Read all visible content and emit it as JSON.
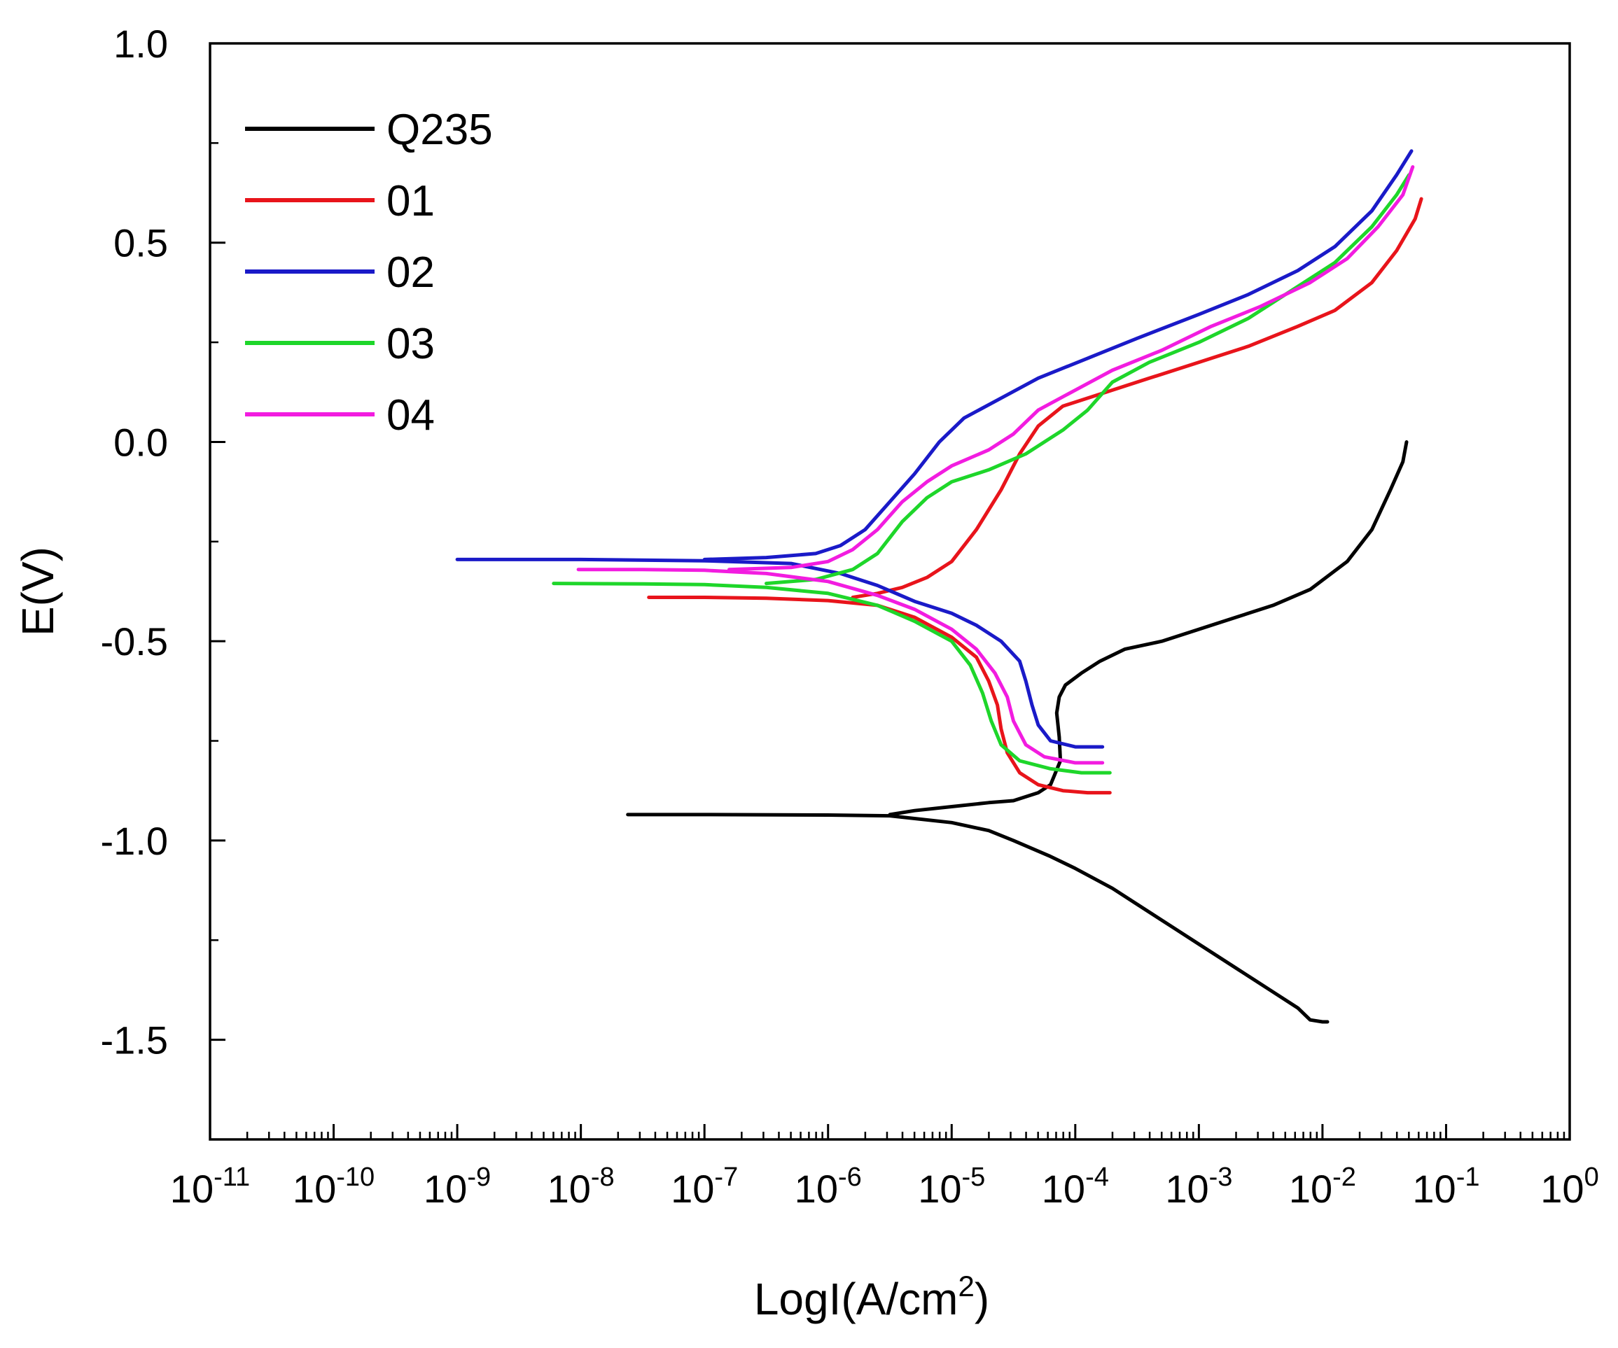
{
  "chart_data": {
    "type": "line",
    "title": "",
    "xlabel": {
      "base": "LogI(A/cm",
      "sup": "2",
      "close": ")"
    },
    "ylabel": "E(V)",
    "x_scale": "log10",
    "xlim_exp": [
      -11,
      0
    ],
    "ylim": [
      -1.75,
      1.0
    ],
    "x_ticks": [
      {
        "base": "10",
        "exp": "-11"
      },
      {
        "base": "10",
        "exp": "-10"
      },
      {
        "base": "10",
        "exp": "-9"
      },
      {
        "base": "10",
        "exp": "-8"
      },
      {
        "base": "10",
        "exp": "-7"
      },
      {
        "base": "10",
        "exp": "-6"
      },
      {
        "base": "10",
        "exp": "-5"
      },
      {
        "base": "10",
        "exp": "-4"
      },
      {
        "base": "10",
        "exp": "-3"
      },
      {
        "base": "10",
        "exp": "-2"
      },
      {
        "base": "10",
        "exp": "-1"
      },
      {
        "base": "10",
        "exp": "0"
      }
    ],
    "y_ticks": [
      {
        "value": 1.0,
        "label": "1.0"
      },
      {
        "value": 0.5,
        "label": "0.5"
      },
      {
        "value": 0.0,
        "label": "0.0"
      },
      {
        "value": -0.5,
        "label": "-0.5"
      },
      {
        "value": -1.0,
        "label": "-1.0"
      },
      {
        "value": -1.5,
        "label": "-1.5"
      }
    ],
    "legend_position": "top-left",
    "grid": false,
    "series": [
      {
        "name": "Q235",
        "color": "#000000",
        "cathodic": [
          [
            -7.62,
            -0.935
          ],
          [
            -7.0,
            -0.935
          ],
          [
            -6.0,
            -0.936
          ],
          [
            -5.5,
            -0.938
          ],
          [
            -5.0,
            -0.955
          ],
          [
            -4.7,
            -0.975
          ],
          [
            -4.5,
            -1.0
          ],
          [
            -4.2,
            -1.04
          ],
          [
            -4.0,
            -1.07
          ],
          [
            -3.7,
            -1.12
          ],
          [
            -3.5,
            -1.16
          ],
          [
            -3.2,
            -1.22
          ],
          [
            -3.0,
            -1.26
          ],
          [
            -2.7,
            -1.32
          ],
          [
            -2.4,
            -1.38
          ],
          [
            -2.2,
            -1.42
          ],
          [
            -2.1,
            -1.45
          ],
          [
            -2.0,
            -1.455
          ],
          [
            -1.96,
            -1.455
          ]
        ],
        "anodic": [
          [
            -5.5,
            -0.935
          ],
          [
            -5.3,
            -0.925
          ],
          [
            -5.0,
            -0.915
          ],
          [
            -4.7,
            -0.905
          ],
          [
            -4.5,
            -0.9
          ],
          [
            -4.3,
            -0.88
          ],
          [
            -4.2,
            -0.86
          ],
          [
            -4.12,
            -0.8
          ],
          [
            -4.13,
            -0.74
          ],
          [
            -4.15,
            -0.68
          ],
          [
            -4.13,
            -0.64
          ],
          [
            -4.08,
            -0.61
          ],
          [
            -3.95,
            -0.58
          ],
          [
            -3.8,
            -0.55
          ],
          [
            -3.6,
            -0.52
          ],
          [
            -3.3,
            -0.5
          ],
          [
            -3.0,
            -0.47
          ],
          [
            -2.7,
            -0.44
          ],
          [
            -2.4,
            -0.41
          ],
          [
            -2.1,
            -0.37
          ],
          [
            -1.8,
            -0.3
          ],
          [
            -1.6,
            -0.22
          ],
          [
            -1.45,
            -0.12
          ],
          [
            -1.35,
            -0.05
          ],
          [
            -1.32,
            0.0
          ]
        ]
      },
      {
        "name": "01",
        "color": "#e8141b",
        "cathodic": [
          [
            -7.45,
            -0.39
          ],
          [
            -7.0,
            -0.39
          ],
          [
            -6.5,
            -0.392
          ],
          [
            -6.0,
            -0.398
          ],
          [
            -5.6,
            -0.41
          ],
          [
            -5.3,
            -0.44
          ],
          [
            -5.0,
            -0.49
          ],
          [
            -4.8,
            -0.54
          ],
          [
            -4.7,
            -0.6
          ],
          [
            -4.63,
            -0.66
          ],
          [
            -4.6,
            -0.72
          ],
          [
            -4.55,
            -0.78
          ],
          [
            -4.45,
            -0.83
          ],
          [
            -4.3,
            -0.86
          ],
          [
            -4.1,
            -0.875
          ],
          [
            -3.9,
            -0.88
          ],
          [
            -3.72,
            -0.88
          ]
        ],
        "anodic": [
          [
            -5.8,
            -0.39
          ],
          [
            -5.6,
            -0.38
          ],
          [
            -5.4,
            -0.365
          ],
          [
            -5.2,
            -0.34
          ],
          [
            -5.0,
            -0.3
          ],
          [
            -4.8,
            -0.22
          ],
          [
            -4.6,
            -0.12
          ],
          [
            -4.45,
            -0.03
          ],
          [
            -4.3,
            0.04
          ],
          [
            -4.1,
            0.09
          ],
          [
            -3.8,
            0.12
          ],
          [
            -3.4,
            0.16
          ],
          [
            -3.0,
            0.2
          ],
          [
            -2.6,
            0.24
          ],
          [
            -2.2,
            0.29
          ],
          [
            -1.9,
            0.33
          ],
          [
            -1.6,
            0.4
          ],
          [
            -1.4,
            0.48
          ],
          [
            -1.25,
            0.56
          ],
          [
            -1.2,
            0.61
          ]
        ]
      },
      {
        "name": "02",
        "color": "#1a1ac8",
        "cathodic": [
          [
            -9.0,
            -0.295
          ],
          [
            -8.0,
            -0.295
          ],
          [
            -7.0,
            -0.298
          ],
          [
            -6.3,
            -0.305
          ],
          [
            -5.9,
            -0.33
          ],
          [
            -5.6,
            -0.36
          ],
          [
            -5.3,
            -0.4
          ],
          [
            -5.0,
            -0.43
          ],
          [
            -4.8,
            -0.46
          ],
          [
            -4.6,
            -0.5
          ],
          [
            -4.45,
            -0.55
          ],
          [
            -4.4,
            -0.6
          ],
          [
            -4.35,
            -0.66
          ],
          [
            -4.3,
            -0.71
          ],
          [
            -4.2,
            -0.75
          ],
          [
            -4.0,
            -0.765
          ],
          [
            -3.78,
            -0.765
          ]
        ],
        "anodic": [
          [
            -7.0,
            -0.295
          ],
          [
            -6.5,
            -0.29
          ],
          [
            -6.1,
            -0.28
          ],
          [
            -5.9,
            -0.26
          ],
          [
            -5.7,
            -0.22
          ],
          [
            -5.5,
            -0.15
          ],
          [
            -5.3,
            -0.08
          ],
          [
            -5.1,
            0.0
          ],
          [
            -4.9,
            0.06
          ],
          [
            -4.6,
            0.11
          ],
          [
            -4.3,
            0.16
          ],
          [
            -3.9,
            0.21
          ],
          [
            -3.5,
            0.26
          ],
          [
            -3.0,
            0.32
          ],
          [
            -2.6,
            0.37
          ],
          [
            -2.2,
            0.43
          ],
          [
            -1.9,
            0.49
          ],
          [
            -1.6,
            0.58
          ],
          [
            -1.4,
            0.67
          ],
          [
            -1.28,
            0.73
          ]
        ]
      },
      {
        "name": "03",
        "color": "#1ed62a",
        "cathodic": [
          [
            -8.22,
            -0.355
          ],
          [
            -7.5,
            -0.356
          ],
          [
            -7.0,
            -0.358
          ],
          [
            -6.5,
            -0.365
          ],
          [
            -6.0,
            -0.38
          ],
          [
            -5.6,
            -0.41
          ],
          [
            -5.3,
            -0.45
          ],
          [
            -5.0,
            -0.5
          ],
          [
            -4.85,
            -0.56
          ],
          [
            -4.75,
            -0.63
          ],
          [
            -4.68,
            -0.7
          ],
          [
            -4.6,
            -0.76
          ],
          [
            -4.45,
            -0.8
          ],
          [
            -4.2,
            -0.82
          ],
          [
            -3.95,
            -0.83
          ],
          [
            -3.72,
            -0.83
          ]
        ],
        "anodic": [
          [
            -6.5,
            -0.355
          ],
          [
            -6.1,
            -0.345
          ],
          [
            -5.8,
            -0.32
          ],
          [
            -5.6,
            -0.28
          ],
          [
            -5.4,
            -0.2
          ],
          [
            -5.2,
            -0.14
          ],
          [
            -5.0,
            -0.1
          ],
          [
            -4.7,
            -0.07
          ],
          [
            -4.4,
            -0.03
          ],
          [
            -4.1,
            0.03
          ],
          [
            -3.9,
            0.08
          ],
          [
            -3.7,
            0.15
          ],
          [
            -3.4,
            0.2
          ],
          [
            -3.0,
            0.25
          ],
          [
            -2.6,
            0.31
          ],
          [
            -2.2,
            0.39
          ],
          [
            -1.9,
            0.45
          ],
          [
            -1.6,
            0.54
          ],
          [
            -1.4,
            0.62
          ],
          [
            -1.3,
            0.67
          ]
        ]
      },
      {
        "name": "04",
        "color": "#f21ce0",
        "cathodic": [
          [
            -8.02,
            -0.32
          ],
          [
            -7.5,
            -0.32
          ],
          [
            -7.0,
            -0.322
          ],
          [
            -6.5,
            -0.33
          ],
          [
            -6.0,
            -0.35
          ],
          [
            -5.6,
            -0.385
          ],
          [
            -5.3,
            -0.42
          ],
          [
            -5.0,
            -0.47
          ],
          [
            -4.8,
            -0.52
          ],
          [
            -4.65,
            -0.58
          ],
          [
            -4.55,
            -0.64
          ],
          [
            -4.5,
            -0.7
          ],
          [
            -4.4,
            -0.76
          ],
          [
            -4.25,
            -0.79
          ],
          [
            -4.0,
            -0.805
          ],
          [
            -3.78,
            -0.805
          ]
        ],
        "anodic": [
          [
            -6.8,
            -0.32
          ],
          [
            -6.3,
            -0.315
          ],
          [
            -6.0,
            -0.3
          ],
          [
            -5.8,
            -0.27
          ],
          [
            -5.6,
            -0.22
          ],
          [
            -5.4,
            -0.15
          ],
          [
            -5.2,
            -0.1
          ],
          [
            -5.0,
            -0.06
          ],
          [
            -4.7,
            -0.02
          ],
          [
            -4.5,
            0.02
          ],
          [
            -4.3,
            0.08
          ],
          [
            -4.0,
            0.13
          ],
          [
            -3.7,
            0.18
          ],
          [
            -3.3,
            0.23
          ],
          [
            -2.9,
            0.29
          ],
          [
            -2.5,
            0.34
          ],
          [
            -2.1,
            0.4
          ],
          [
            -1.8,
            0.46
          ],
          [
            -1.55,
            0.54
          ],
          [
            -1.35,
            0.62
          ],
          [
            -1.27,
            0.69
          ]
        ]
      }
    ]
  }
}
